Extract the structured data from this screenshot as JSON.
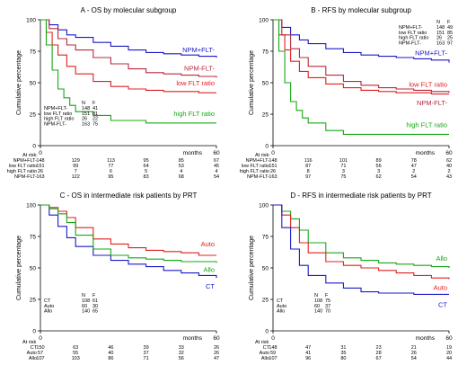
{
  "chart_data": [
    {
      "type": "line",
      "title": "A - OS by molecular subgroup",
      "ylabel": "Cumulative percentage",
      "xlabel": "months",
      "xlim": [
        0,
        60
      ],
      "ylim": [
        0,
        100
      ],
      "xticks": [
        "0",
        "60"
      ],
      "yticks": [
        "0",
        "25",
        "50",
        "75",
        "100"
      ],
      "legend_header": [
        "N",
        "F"
      ],
      "legend": [
        {
          "name": "NPM+FLT-",
          "n": "148",
          "f": "41"
        },
        {
          "name": "low FLT ratio",
          "n": "151",
          "f": "81"
        },
        {
          "name": "high FLT ratio",
          "n": "26",
          "f": "22"
        },
        {
          "name": "NPM-FLT-",
          "n": "163",
          "f": "75"
        }
      ],
      "risk_title": "At risk:",
      "risk_times": [
        0,
        12,
        24,
        36,
        48,
        60
      ],
      "risk": [
        {
          "name": "NPM+FLT-",
          "values": [
            "148",
            "129",
            "113",
            "95",
            "85",
            "67"
          ]
        },
        {
          "name": "low FLT ratio",
          "values": [
            "151",
            "99",
            "77",
            "64",
            "53",
            "45"
          ]
        },
        {
          "name": "high FLT ratio",
          "values": [
            "26",
            "7",
            "6",
            "5",
            "4",
            "4"
          ]
        },
        {
          "name": "NPM-FLT-",
          "values": [
            "163",
            "122",
            "95",
            "83",
            "68",
            "54"
          ]
        }
      ],
      "series": [
        {
          "name": "NPM+FLT-",
          "label": "NPM+FLT-",
          "color": "#1a1ac8",
          "x": [
            0,
            3,
            6,
            9,
            12,
            18,
            24,
            30,
            36,
            42,
            48,
            54,
            60
          ],
          "y": [
            100,
            96,
            92,
            88,
            86,
            82,
            79,
            76,
            74,
            73,
            72,
            71,
            70
          ]
        },
        {
          "name": "NPM-FLT-",
          "label": "NPM-FLT-",
          "color": "#b8283c",
          "x": [
            0,
            3,
            6,
            9,
            12,
            18,
            24,
            30,
            36,
            42,
            48,
            54,
            60
          ],
          "y": [
            100,
            93,
            85,
            80,
            76,
            70,
            65,
            61,
            58,
            57,
            56,
            55,
            54
          ]
        },
        {
          "name": "low FLT ratio",
          "label": "low FLT ratio",
          "color": "#e02020",
          "x": [
            0,
            2,
            4,
            6,
            9,
            12,
            18,
            24,
            30,
            36,
            42,
            48,
            54,
            60
          ],
          "y": [
            100,
            90,
            80,
            72,
            63,
            57,
            51,
            47,
            45,
            44,
            43,
            43,
            42,
            42
          ]
        },
        {
          "name": "high FLT ratio",
          "label": "high FLT ratio",
          "color": "#15a815",
          "x": [
            0,
            2,
            4,
            6,
            8,
            10,
            12,
            18,
            24,
            36,
            48,
            54,
            60
          ],
          "y": [
            100,
            80,
            60,
            45,
            38,
            32,
            27,
            24,
            20,
            18,
            18,
            18,
            18
          ]
        }
      ]
    },
    {
      "type": "line",
      "title": "B - RFS by molecular subgroup",
      "ylabel": "Cumulative percentage",
      "xlabel": "months",
      "xlim": [
        0,
        60
      ],
      "ylim": [
        0,
        100
      ],
      "xticks": [
        "0",
        "60"
      ],
      "yticks": [
        "0",
        "25",
        "50",
        "75",
        "100"
      ],
      "legend_header": [
        "N",
        "F"
      ],
      "legend": [
        {
          "name": "NPM+FLT-",
          "n": "148",
          "f": "49"
        },
        {
          "name": "low FLT ratio",
          "n": "151",
          "f": "85"
        },
        {
          "name": "high FLT ratio",
          "n": "26",
          "f": "25"
        },
        {
          "name": "NPM-FLT-",
          "n": "163",
          "f": "97"
        }
      ],
      "risk_title": "At risk:",
      "risk_times": [
        0,
        12,
        24,
        36,
        48,
        60
      ],
      "risk": [
        {
          "name": "NPM+FLT-",
          "values": [
            "148",
            "116",
            "101",
            "89",
            "78",
            "62"
          ]
        },
        {
          "name": "low FLT ratio",
          "values": [
            "151",
            "87",
            "71",
            "56",
            "47",
            "40"
          ]
        },
        {
          "name": "high FLT ratio",
          "values": [
            "26",
            "8",
            "3",
            "3",
            "2",
            "2"
          ]
        },
        {
          "name": "NPM-FLT-",
          "values": [
            "163",
            "97",
            "75",
            "62",
            "54",
            "43"
          ]
        }
      ],
      "series": [
        {
          "name": "NPM+FLT-",
          "label": "NPM+FLT-",
          "color": "#1a1ac8",
          "x": [
            0,
            3,
            6,
            9,
            12,
            18,
            24,
            30,
            36,
            42,
            48,
            54,
            60
          ],
          "y": [
            100,
            94,
            88,
            84,
            81,
            77,
            74,
            72,
            71,
            70,
            69,
            68,
            66
          ]
        },
        {
          "name": "low FLT ratio",
          "label": "low FLT ratio",
          "color": "#e02020",
          "x": [
            0,
            2,
            4,
            6,
            9,
            12,
            18,
            24,
            30,
            36,
            42,
            48,
            54,
            60
          ],
          "y": [
            100,
            88,
            76,
            67,
            59,
            54,
            49,
            46,
            44,
            43,
            42,
            42,
            41,
            41
          ]
        },
        {
          "name": "NPM-FLT-",
          "label": "NPM-FLT-",
          "color": "#b8283c",
          "x": [
            0,
            3,
            6,
            9,
            12,
            18,
            24,
            30,
            36,
            42,
            48,
            54,
            60
          ],
          "y": [
            100,
            88,
            77,
            70,
            63,
            56,
            51,
            48,
            46,
            45,
            44,
            43,
            42
          ]
        },
        {
          "name": "high FLT ratio",
          "label": "high FLT ratio",
          "color": "#15a815",
          "x": [
            0,
            2,
            4,
            6,
            8,
            10,
            12,
            18,
            24,
            60
          ],
          "y": [
            100,
            75,
            50,
            35,
            28,
            22,
            18,
            12,
            9,
            9
          ]
        }
      ]
    },
    {
      "type": "line",
      "title": "C - OS in intermediate risk patients by PRT",
      "ylabel": "Cumulative percentage",
      "xlabel": "months",
      "xlim": [
        0,
        60
      ],
      "ylim": [
        0,
        100
      ],
      "xticks": [
        "0",
        "60"
      ],
      "yticks": [
        "0",
        "25",
        "50",
        "75",
        "100"
      ],
      "legend_header": [
        "N",
        "F"
      ],
      "legend": [
        {
          "name": "CT",
          "n": "108",
          "f": "61"
        },
        {
          "name": "Auto",
          "n": "60",
          "f": "30"
        },
        {
          "name": "Allo",
          "n": "140",
          "f": "65"
        }
      ],
      "risk_title": "At risk",
      "risk_times": [
        0,
        12,
        24,
        36,
        48,
        60
      ],
      "risk": [
        {
          "name": "CT",
          "values": [
            "150",
            "63",
            "46",
            "39",
            "33",
            "26"
          ]
        },
        {
          "name": "Auto",
          "values": [
            "57",
            "55",
            "40",
            "37",
            "32",
            "26"
          ]
        },
        {
          "name": "Allo",
          "values": [
            "107",
            "103",
            "86",
            "71",
            "56",
            "47"
          ]
        }
      ],
      "series": [
        {
          "name": "CT",
          "label": "CT",
          "color": "#1a1ac8",
          "x": [
            0,
            3,
            6,
            9,
            12,
            18,
            24,
            30,
            36,
            42,
            48,
            54,
            60
          ],
          "y": [
            100,
            92,
            83,
            74,
            67,
            60,
            56,
            53,
            51,
            48,
            46,
            44,
            42
          ]
        },
        {
          "name": "Auto",
          "label": "Auto",
          "color": "#e02020",
          "x": [
            0,
            3,
            6,
            9,
            12,
            18,
            24,
            30,
            36,
            42,
            48,
            54,
            60
          ],
          "y": [
            100,
            98,
            95,
            90,
            82,
            73,
            69,
            66,
            64,
            63,
            62,
            60,
            60
          ]
        },
        {
          "name": "Allo",
          "label": "Allo",
          "color": "#15a815",
          "x": [
            0,
            3,
            6,
            9,
            12,
            18,
            24,
            30,
            36,
            42,
            48,
            54,
            60
          ],
          "y": [
            100,
            97,
            93,
            86,
            76,
            65,
            60,
            58,
            57,
            56,
            55,
            55,
            54
          ]
        }
      ]
    },
    {
      "type": "line",
      "title": "D - RFS in intermediate risk patients by PRT",
      "ylabel": "Cumulative percentage",
      "xlabel": "months",
      "xlim": [
        0,
        60
      ],
      "ylim": [
        0,
        100
      ],
      "xticks": [
        "0",
        "60"
      ],
      "yticks": [
        "0",
        "25",
        "50",
        "75",
        "100"
      ],
      "legend_header": [
        "N",
        "F"
      ],
      "legend": [
        {
          "name": "CT",
          "n": "108",
          "f": "75"
        },
        {
          "name": "Auto",
          "n": "60",
          "f": "37"
        },
        {
          "name": "Allo",
          "n": "140",
          "f": "70"
        }
      ],
      "risk_title": "At risk",
      "risk_times": [
        0,
        12,
        24,
        36,
        48,
        60
      ],
      "risk": [
        {
          "name": "CT",
          "values": [
            "148",
            "47",
            "31",
            "23",
            "21",
            "19"
          ]
        },
        {
          "name": "Auto",
          "values": [
            "59",
            "41",
            "35",
            "28",
            "26",
            "20"
          ]
        },
        {
          "name": "Allo",
          "values": [
            "107",
            "96",
            "80",
            "67",
            "54",
            "44"
          ]
        }
      ],
      "series": [
        {
          "name": "Allo",
          "label": "Allo",
          "color": "#15a815",
          "x": [
            0,
            3,
            6,
            9,
            12,
            18,
            24,
            30,
            36,
            42,
            48,
            54,
            60
          ],
          "y": [
            100,
            95,
            89,
            80,
            70,
            62,
            58,
            56,
            54,
            53,
            52,
            51,
            50
          ]
        },
        {
          "name": "Auto",
          "label": "Auto",
          "color": "#e02020",
          "x": [
            0,
            3,
            6,
            9,
            12,
            18,
            24,
            30,
            36,
            42,
            48,
            54,
            60
          ],
          "y": [
            100,
            92,
            82,
            70,
            62,
            55,
            52,
            50,
            48,
            46,
            44,
            42,
            41
          ]
        },
        {
          "name": "CT",
          "label": "CT",
          "color": "#1a1ac8",
          "x": [
            0,
            3,
            6,
            9,
            12,
            18,
            24,
            30,
            36,
            42,
            48,
            54,
            60
          ],
          "y": [
            100,
            82,
            65,
            52,
            44,
            38,
            34,
            31,
            30,
            30,
            29,
            29,
            29
          ]
        }
      ]
    }
  ]
}
